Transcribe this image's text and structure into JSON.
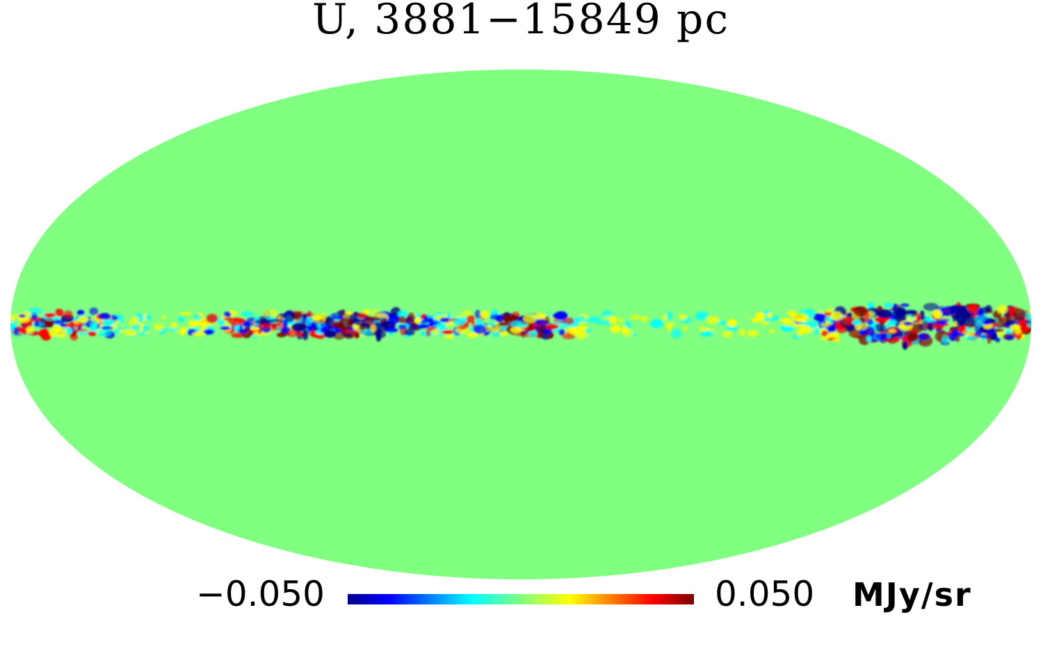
{
  "title": "U, 3881−15849 pc",
  "projection": "mollweide",
  "background_color": "#80ff80",
  "colormap": [
    "#00008f",
    "#0000ff",
    "#00ffff",
    "#80ff80",
    "#ffff00",
    "#ff0000",
    "#800000"
  ],
  "colorbar": {
    "min_label": "−0.050",
    "max_label": "0.050",
    "unit": "MJy/sr",
    "min": -0.05,
    "max": 0.05
  },
  "structure": {
    "description_free": true,
    "galactic_plane_band": "narrow band of positive and negative fluctuations along the equator; strongest in the left-central and far-right regions"
  }
}
